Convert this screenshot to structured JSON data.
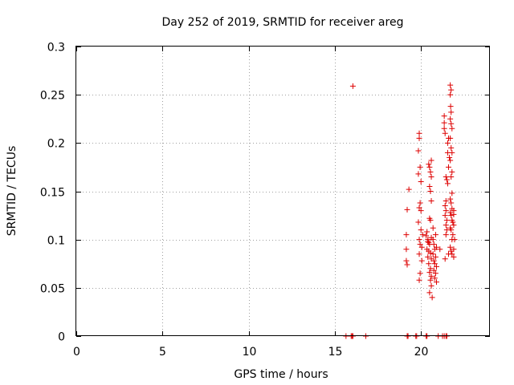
{
  "chart_data": {
    "type": "scatter",
    "title": "Day 252 of 2019, SRMTID for receiver areg",
    "xlabel": "GPS time / hours",
    "ylabel": "SRMTID / TECUs",
    "xlim": [
      0,
      24
    ],
    "ylim": [
      0,
      0.3
    ],
    "xticks": [
      0,
      5,
      10,
      15,
      20
    ],
    "xtick_labels": [
      "0",
      "5",
      "10",
      "15",
      "20"
    ],
    "yticks": [
      0,
      0.05,
      0.1,
      0.15,
      0.2,
      0.25,
      0.3
    ],
    "ytick_labels": [
      "0",
      "0.05",
      "0.1",
      "0.15",
      "0.2",
      "0.25",
      "0.3"
    ],
    "grid": true,
    "marker": "+",
    "color": "#dd0000",
    "series": [
      {
        "name": "SRMTID",
        "points": [
          [
            15.65,
            0
          ],
          [
            15.95,
            0
          ],
          [
            16.0,
            0
          ],
          [
            16.05,
            0
          ],
          [
            16.8,
            0
          ],
          [
            19.2,
            0
          ],
          [
            19.25,
            0
          ],
          [
            19.7,
            0
          ],
          [
            19.75,
            0
          ],
          [
            20.3,
            0
          ],
          [
            20.35,
            0
          ],
          [
            21.0,
            0
          ],
          [
            21.25,
            0
          ],
          [
            21.35,
            0
          ],
          [
            21.45,
            0
          ],
          [
            21.5,
            0
          ],
          [
            16.05,
            0.259
          ],
          [
            19.15,
            0.105
          ],
          [
            19.15,
            0.09
          ],
          [
            19.15,
            0.078
          ],
          [
            19.2,
            0.131
          ],
          [
            19.2,
            0.074
          ],
          [
            19.3,
            0.152
          ],
          [
            19.9,
            0.21
          ],
          [
            19.9,
            0.205
          ],
          [
            19.85,
            0.192
          ],
          [
            19.85,
            0.168
          ],
          [
            19.95,
            0.175
          ],
          [
            20.0,
            0.16
          ],
          [
            19.95,
            0.138
          ],
          [
            19.9,
            0.133
          ],
          [
            20.0,
            0.13
          ],
          [
            19.85,
            0.118
          ],
          [
            20.0,
            0.11
          ],
          [
            19.9,
            0.1
          ],
          [
            19.95,
            0.095
          ],
          [
            20.05,
            0.092
          ],
          [
            19.9,
            0.085
          ],
          [
            20.05,
            0.078
          ],
          [
            19.95,
            0.065
          ],
          [
            19.9,
            0.058
          ],
          [
            20.1,
            0.105
          ],
          [
            20.35,
            0.108
          ],
          [
            20.4,
            0.1
          ],
          [
            20.45,
            0.097
          ],
          [
            20.5,
            0.095
          ],
          [
            20.35,
            0.09
          ],
          [
            20.45,
            0.088
          ],
          [
            20.55,
            0.086
          ],
          [
            20.4,
            0.082
          ],
          [
            20.6,
            0.08
          ],
          [
            20.45,
            0.075
          ],
          [
            20.55,
            0.07
          ],
          [
            20.5,
            0.066
          ],
          [
            20.6,
            0.062
          ],
          [
            20.55,
            0.058
          ],
          [
            20.6,
            0.052
          ],
          [
            20.5,
            0.045
          ],
          [
            20.65,
            0.04
          ],
          [
            20.4,
            0.098
          ],
          [
            20.6,
            0.102
          ],
          [
            20.3,
            0.104
          ],
          [
            20.5,
            0.175
          ],
          [
            20.55,
            0.17
          ],
          [
            20.6,
            0.165
          ],
          [
            20.5,
            0.155
          ],
          [
            20.55,
            0.15
          ],
          [
            20.6,
            0.14
          ],
          [
            20.5,
            0.122
          ],
          [
            20.55,
            0.12
          ],
          [
            20.6,
            0.182
          ],
          [
            20.45,
            0.178
          ],
          [
            20.7,
            0.1
          ],
          [
            20.75,
            0.095
          ],
          [
            20.8,
            0.09
          ],
          [
            20.7,
            0.085
          ],
          [
            20.85,
            0.082
          ],
          [
            20.75,
            0.078
          ],
          [
            20.8,
            0.075
          ],
          [
            20.9,
            0.072
          ],
          [
            20.75,
            0.068
          ],
          [
            20.85,
            0.065
          ],
          [
            20.8,
            0.06
          ],
          [
            20.9,
            0.056
          ],
          [
            20.7,
            0.112
          ],
          [
            20.85,
            0.105
          ],
          [
            20.9,
            0.092
          ],
          [
            21.1,
            0.09
          ],
          [
            21.35,
            0.228
          ],
          [
            21.35,
            0.221
          ],
          [
            21.35,
            0.215
          ],
          [
            21.4,
            0.21
          ],
          [
            21.45,
            0.165
          ],
          [
            21.5,
            0.162
          ],
          [
            21.45,
            0.14
          ],
          [
            21.4,
            0.135
          ],
          [
            21.45,
            0.13
          ],
          [
            21.4,
            0.125
          ],
          [
            21.5,
            0.12
          ],
          [
            21.45,
            0.115
          ],
          [
            21.5,
            0.11
          ],
          [
            21.45,
            0.105
          ],
          [
            21.4,
            0.08
          ],
          [
            21.6,
            0.085
          ],
          [
            21.55,
            0.2
          ],
          [
            21.6,
            0.205
          ],
          [
            21.55,
            0.19
          ],
          [
            21.65,
            0.185
          ],
          [
            21.6,
            0.175
          ],
          [
            21.55,
            0.158
          ],
          [
            21.7,
            0.26
          ],
          [
            21.75,
            0.255
          ],
          [
            21.7,
            0.25
          ],
          [
            21.72,
            0.238
          ],
          [
            21.75,
            0.232
          ],
          [
            21.7,
            0.225
          ],
          [
            21.75,
            0.22
          ],
          [
            21.8,
            0.215
          ],
          [
            21.7,
            0.205
          ],
          [
            21.75,
            0.195
          ],
          [
            21.8,
            0.19
          ],
          [
            21.7,
            0.182
          ],
          [
            21.8,
            0.17
          ],
          [
            21.75,
            0.165
          ],
          [
            21.8,
            0.148
          ],
          [
            21.7,
            0.142
          ],
          [
            21.75,
            0.138
          ],
          [
            21.8,
            0.132
          ],
          [
            21.7,
            0.128
          ],
          [
            21.75,
            0.125
          ],
          [
            21.8,
            0.12
          ],
          [
            21.85,
            0.118
          ],
          [
            21.7,
            0.112
          ],
          [
            21.75,
            0.11
          ],
          [
            21.85,
            0.105
          ],
          [
            21.8,
            0.1
          ],
          [
            21.7,
            0.092
          ],
          [
            21.75,
            0.088
          ],
          [
            21.8,
            0.085
          ],
          [
            21.9,
            0.082
          ],
          [
            21.9,
            0.13
          ],
          [
            21.9,
            0.126
          ],
          [
            21.9,
            0.115
          ],
          [
            21.95,
            0.1
          ],
          [
            21.9,
            0.09
          ]
        ]
      }
    ]
  }
}
